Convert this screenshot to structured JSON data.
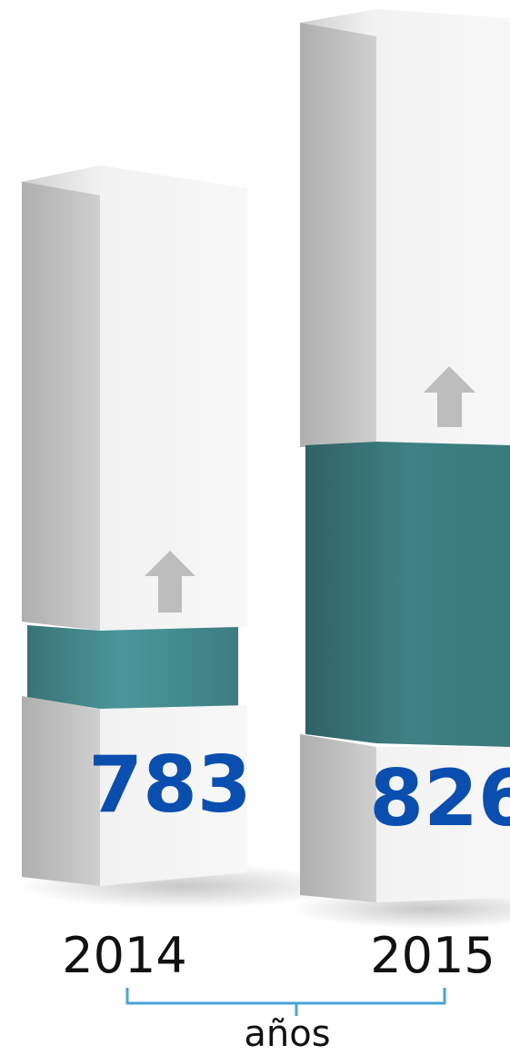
{
  "chart_data": {
    "type": "bar",
    "categories": [
      "2014",
      "2015"
    ],
    "values": [
      783,
      826
    ],
    "value_labels": [
      "783",
      "826"
    ],
    "xlabel": "años",
    "colors": {
      "value_text": "#0a4fb0",
      "teal_band": "#3c7d80",
      "box": "#e6e6e6",
      "arrow": "#bdbdbd",
      "bracket": "#4aa3d8",
      "axis_text": "#111111"
    }
  }
}
